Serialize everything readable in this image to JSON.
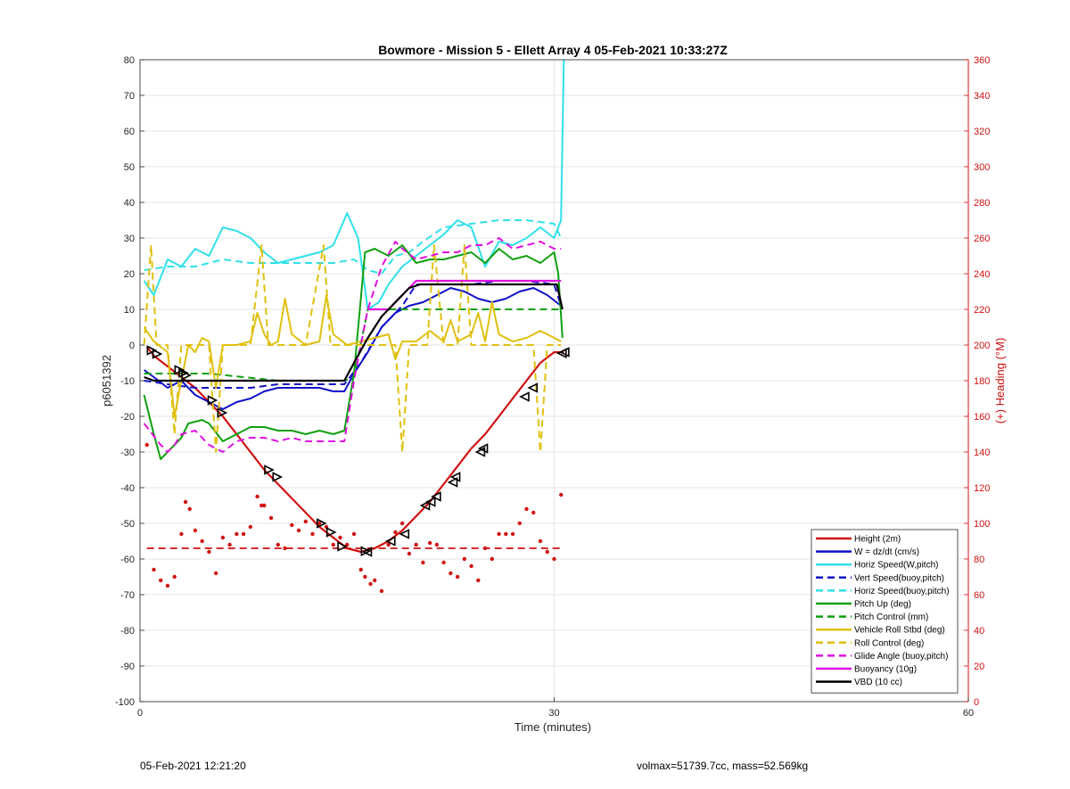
{
  "figure": {
    "title": "Bowmore - Mission 5 - Ellett Array 4 05-Feb-2021 10:33:27Z",
    "footer_left": "05-Feb-2021 12:21:20",
    "footer_right": "volmax=51739.7cc, mass=52.569kg"
  },
  "chart_data": {
    "type": "line",
    "title": "Bowmore - Mission 5 - Ellett Array 4 05-Feb-2021 10:33:27Z",
    "xlabel": "Time (minutes)",
    "ylabel": "p6051392",
    "y2label": "(+) Heading (°M)",
    "xlim": [
      0,
      60
    ],
    "ylim": [
      -100,
      80
    ],
    "y2lim": [
      0,
      360
    ],
    "xticks": [
      0,
      30,
      60
    ],
    "yticks": [
      80,
      70,
      60,
      50,
      40,
      30,
      20,
      10,
      0,
      -10,
      -20,
      -30,
      -40,
      -50,
      -60,
      -70,
      -80,
      -90,
      -100
    ],
    "y2ticks": [
      360,
      340,
      320,
      300,
      280,
      260,
      240,
      220,
      200,
      180,
      160,
      140,
      120,
      100,
      80,
      60,
      40,
      20,
      0
    ],
    "grid": true,
    "legend_position": "bottom-right",
    "colors": {
      "red": "#d01010",
      "blue": "#1010c8",
      "cyan": "#30e0e8",
      "green": "#10a010",
      "yellow": "#e0c010",
      "magenta": "#e010e0",
      "black": "#000000"
    },
    "series": [
      {
        "name": "Height (2m)",
        "color": "red",
        "style": "solid",
        "width": 2.2,
        "x": [
          0.5,
          1,
          2,
          3,
          4,
          5,
          6,
          7,
          8,
          9,
          10,
          11,
          12,
          13,
          14,
          15,
          16,
          17,
          18,
          19,
          20,
          21,
          22,
          23,
          24,
          25,
          26,
          27,
          28,
          29,
          30,
          30.7
        ],
        "y": [
          -0.5,
          -3,
          -6,
          -9,
          -12,
          -16,
          -20,
          -25,
          -30,
          -35,
          -39,
          -43,
          -47,
          -51,
          -54,
          -57,
          -58,
          -57,
          -55,
          -52,
          -48,
          -44,
          -39,
          -34,
          -29,
          -25,
          -20,
          -15,
          -10,
          -5,
          -2,
          -2
        ]
      },
      {
        "name": "W = dz/dt (cm/s)",
        "color": "blue",
        "style": "solid",
        "width": 2,
        "x": [
          0.3,
          1,
          2,
          3,
          4,
          5,
          6,
          7,
          8,
          9,
          10,
          11,
          12,
          13,
          14,
          14.8,
          15.5,
          16.5,
          17.5,
          18.5,
          19.5,
          20.5,
          21.5,
          22.5,
          23.5,
          24.5,
          25.5,
          26.5,
          27.5,
          28.5,
          29.5,
          30.5
        ],
        "y": [
          -7,
          -9,
          -12,
          -10,
          -14,
          -16,
          -18,
          -16,
          -15,
          -13,
          -12,
          -12,
          -12,
          -12,
          -13,
          -13,
          -8,
          -2,
          5,
          9,
          11,
          12,
          14,
          16,
          15,
          13,
          12,
          13,
          15,
          16,
          14,
          11
        ]
      },
      {
        "name": "Horiz Speed(W,pitch)",
        "color": "cyan",
        "style": "solid",
        "width": 2,
        "x": [
          0.3,
          1,
          2,
          3,
          4,
          5,
          6,
          7,
          8,
          9,
          10,
          11,
          12,
          13,
          14,
          15,
          15.8,
          16.5,
          17.3,
          18,
          19,
          20,
          21,
          22,
          23,
          24,
          25,
          26,
          27,
          28,
          29,
          30,
          30.5,
          30.7
        ],
        "y": [
          18,
          14,
          24,
          22,
          27,
          25,
          33,
          32,
          30,
          26,
          23,
          24,
          25,
          26,
          28,
          37,
          30,
          10,
          12,
          17,
          22,
          25,
          28,
          31,
          35,
          33,
          22,
          29,
          28,
          30,
          33,
          30,
          35,
          80
        ]
      },
      {
        "name": "Vert Speed(buoy,pitch)",
        "color": "blue",
        "style": "dashed",
        "width": 2,
        "x": [
          0.3,
          2,
          4,
          6,
          8,
          10,
          12,
          14,
          14.8,
          16,
          17.5,
          19,
          20,
          22,
          24,
          26,
          28,
          30,
          30.5
        ],
        "y": [
          -10,
          -11,
          -12,
          -12,
          -12,
          -11,
          -11,
          -11,
          -11,
          -5,
          5,
          11,
          17,
          17,
          17,
          18,
          18,
          17,
          11
        ]
      },
      {
        "name": "Horiz Speed(buoy,pitch)",
        "color": "cyan",
        "style": "dashed",
        "width": 2,
        "x": [
          0.3,
          2,
          4,
          6,
          8,
          10,
          12,
          14,
          15.5,
          16.5,
          17.5,
          18.5,
          19.5,
          20.5,
          22,
          24,
          26,
          28,
          30,
          30.5
        ],
        "y": [
          21,
          22,
          22,
          24,
          23,
          23,
          23,
          23,
          24,
          21,
          20,
          25,
          26,
          29,
          33,
          34,
          35,
          35,
          34,
          30
        ]
      },
      {
        "name": "Pitch Up (deg)",
        "color": "green",
        "style": "solid",
        "width": 2,
        "x": [
          0.3,
          1,
          1.5,
          2.5,
          3,
          3.5,
          4.5,
          5,
          6,
          7,
          8,
          9,
          10,
          11,
          12,
          13,
          14,
          14.8,
          15.5,
          16.3,
          17,
          18,
          19,
          20,
          21,
          22,
          23,
          24,
          25,
          26,
          27,
          28,
          29,
          30,
          30.3,
          30.6
        ],
        "y": [
          -14,
          -25,
          -32,
          -28,
          -26,
          -22,
          -21,
          -22,
          -27,
          -25,
          -23,
          -23,
          -24,
          -24,
          -25,
          -24,
          -25,
          -24,
          -8,
          26,
          27,
          25,
          28,
          23,
          24,
          24,
          25,
          26,
          23,
          27,
          24,
          25,
          23,
          26,
          20,
          2
        ]
      },
      {
        "name": "Pitch Control (mm)",
        "color": "green",
        "style": "dashed",
        "width": 2,
        "x": [
          0.3,
          5,
          10,
          14.8,
          15.5,
          16.5,
          18,
          22,
          26,
          30.5
        ],
        "y": [
          -8,
          -8,
          -10,
          -10,
          -9,
          10,
          10,
          10,
          10,
          10
        ]
      },
      {
        "name": "Vehicle Roll Stbd (deg)",
        "color": "yellow",
        "style": "solid",
        "width": 2,
        "x": [
          0.3,
          1,
          2,
          2.5,
          3,
          3.5,
          4,
          4.5,
          5,
          5.5,
          6,
          7,
          8,
          8.5,
          9,
          9.5,
          10,
          10.5,
          11,
          12,
          13,
          13.5,
          14,
          15,
          16,
          17,
          18,
          18.5,
          19,
          20,
          21,
          22,
          22.5,
          23,
          24,
          24.5,
          25,
          25.5,
          26,
          27,
          28,
          29,
          30,
          30.5
        ],
        "y": [
          5,
          1,
          -2,
          -20,
          -10,
          0,
          -2,
          2,
          1,
          -12,
          0,
          0,
          1,
          9,
          3,
          0,
          1,
          13,
          3,
          0,
          1,
          14,
          3,
          0,
          1,
          2,
          3,
          -4,
          1,
          1,
          4,
          1,
          7,
          1,
          3,
          9,
          1,
          12,
          3,
          1,
          2,
          4,
          2,
          1
        ]
      },
      {
        "name": "Roll Control (deg)",
        "color": "yellow",
        "style": "dashed",
        "width": 2,
        "x": [
          0.3,
          0.8,
          1.2,
          2,
          2.5,
          3,
          3.5,
          4,
          5,
          5.5,
          6,
          7,
          8,
          8.8,
          9.3,
          10,
          12,
          13.3,
          13.8,
          14.3,
          15,
          17,
          18.5,
          19,
          19.5,
          20,
          20.8,
          21.3,
          22,
          23,
          23.5,
          24,
          25,
          27,
          28.5,
          29,
          29.5,
          30,
          30.5
        ],
        "y": [
          0,
          28,
          0,
          0,
          -25,
          0,
          0,
          0,
          0,
          -30,
          0,
          0,
          0,
          28,
          0,
          0,
          0,
          28,
          0,
          0,
          0,
          0,
          0,
          -30,
          0,
          0,
          0,
          28,
          0,
          0,
          28,
          0,
          0,
          0,
          0,
          -30,
          0,
          0,
          0
        ]
      },
      {
        "name": "Glide Angle (buoy,pitch)",
        "color": "magenta",
        "style": "dashed",
        "width": 2,
        "x": [
          0.3,
          1.5,
          2,
          2.5,
          3,
          4,
          5,
          6,
          7,
          8,
          9,
          10,
          11,
          12,
          13,
          14,
          14.8,
          15.5,
          16.5,
          17.5,
          18.5,
          19,
          20,
          21,
          22,
          23,
          24,
          25,
          26,
          27,
          28,
          29,
          30,
          30.5
        ],
        "y": [
          -22,
          -28,
          -30,
          -28,
          -25,
          -24,
          -28,
          -30,
          -27,
          -26,
          -26,
          -27,
          -26,
          -27,
          -27,
          -27,
          -27,
          -10,
          10,
          22,
          29,
          27,
          24,
          25,
          26,
          26,
          28,
          28,
          30,
          27,
          28,
          29,
          27,
          27
        ]
      },
      {
        "name": "Buoyancy (10g)",
        "color": "magenta",
        "style": "solid",
        "width": 2.2,
        "x": [
          16.5,
          18,
          19,
          20,
          22,
          24,
          26,
          28,
          30.5
        ],
        "y": [
          10,
          10,
          14,
          18,
          18,
          18,
          18,
          18,
          18
        ]
      },
      {
        "name": "VBD (10 cc)",
        "color": "black",
        "style": "solid",
        "width": 2.2,
        "x": [
          0.3,
          1,
          3,
          5,
          8,
          11,
          14.8,
          15.5,
          16.5,
          17.5,
          18.5,
          19.5,
          20.3,
          22,
          26,
          30.2,
          30.6
        ],
        "y": [
          -9,
          -10,
          -10,
          -10,
          -10,
          -10,
          -10,
          -5,
          2,
          8,
          12,
          16,
          17,
          17,
          17,
          17,
          10
        ]
      },
      {
        "name": "",
        "color": "red",
        "style": "dashed",
        "width": 1.8,
        "axis": "right",
        "x": [
          0.5,
          30.5
        ],
        "y": [
          86,
          86
        ]
      }
    ],
    "heading_scatter": {
      "color": "red",
      "axis": "right",
      "x": [
        0.5,
        1,
        1.5,
        2,
        2.5,
        3,
        3.3,
        3.6,
        4,
        4.5,
        5,
        5.5,
        6,
        6.5,
        7,
        7.5,
        8,
        8.5,
        8.8,
        9,
        9.5,
        10,
        10.5,
        11,
        11.5,
        12,
        12.5,
        13,
        13.5,
        14,
        14.5,
        15,
        15.5,
        16,
        16.3,
        16.7,
        17,
        17.5,
        18,
        18.5,
        19,
        19.5,
        20,
        20.5,
        21,
        21.5,
        22,
        22.5,
        23,
        23.5,
        24,
        24.5,
        25,
        25.5,
        26,
        26.5,
        27,
        27.5,
        28,
        28.5,
        29,
        29.5,
        30,
        30.5
      ],
      "y": [
        144,
        74,
        68,
        65,
        70,
        94,
        112,
        108,
        96,
        90,
        84,
        72,
        92,
        88,
        94,
        94,
        98,
        115,
        110,
        110,
        103,
        88,
        86,
        99,
        96,
        101,
        94,
        100,
        98,
        88,
        92,
        88,
        94,
        74,
        70,
        66,
        68,
        62,
        88,
        95,
        100,
        83,
        88,
        78,
        89,
        88,
        78,
        72,
        70,
        80,
        76,
        68,
        86,
        80,
        94,
        94,
        94,
        100,
        108,
        106,
        90,
        84,
        80,
        116
      ]
    },
    "markers": {
      "color": "black",
      "x": [
        0.8,
        1.2,
        2.8,
        3.1,
        3.3,
        5.2,
        5.9,
        9.3,
        9.9,
        13.1,
        13.8,
        14.6,
        16.3,
        16.5,
        18.2,
        19.2,
        20.7,
        21.1,
        21.5,
        22.7,
        22.9,
        24.7,
        24.9,
        27.9,
        28.5,
        30.6,
        30.8
      ],
      "y": [
        -1.5,
        -2.5,
        -7,
        -7.8,
        -8.5,
        -15.5,
        -19,
        -35,
        -37,
        -50,
        -52.5,
        -56.5,
        -57.8,
        -58,
        -55,
        -53,
        -45,
        -44,
        -42.5,
        -38.5,
        -37,
        -30,
        -29,
        -14.5,
        -12,
        -2.3,
        -2
      ]
    }
  }
}
